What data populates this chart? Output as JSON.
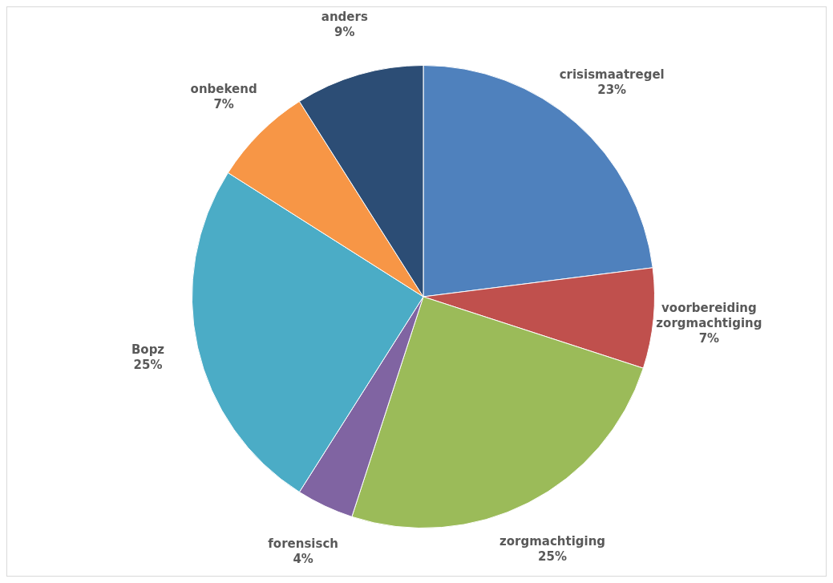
{
  "chart_data": {
    "type": "pie",
    "categories": [
      "crisismaatregel",
      "voorbereiding zorgmachtiging",
      "zorgmachtiging",
      "forensisch",
      "Bopz",
      "onbekend",
      "anders"
    ],
    "values": [
      23,
      7,
      25,
      4,
      25,
      7,
      9
    ],
    "colors": [
      "#4f81bd",
      "#c0504d",
      "#9bbb59",
      "#8064a2",
      "#4bacc6",
      "#f79646",
      "#2c4d75"
    ],
    "value_labels": [
      "23%",
      "7%",
      "25%",
      "4%",
      "25%",
      "7%",
      "9%"
    ],
    "legend": false
  }
}
